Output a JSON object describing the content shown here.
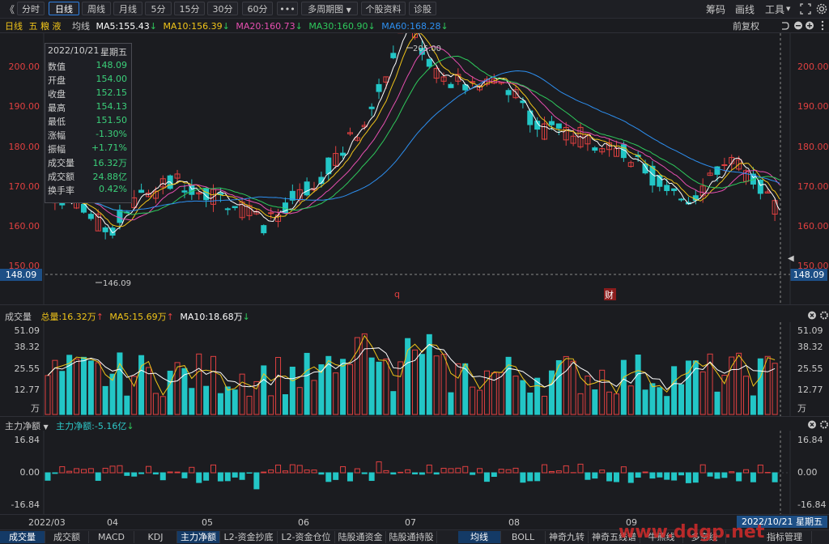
{
  "toolbar": {
    "back": "《",
    "periods": [
      "分时",
      "日线",
      "周线",
      "月线",
      "5分",
      "15分",
      "30分",
      "60分"
    ],
    "active_period": "日线",
    "more": "•••",
    "multi_period": "多周期图",
    "stock_info": "个股资料",
    "diagnose": "诊股",
    "right_items": [
      "筹码",
      "画线",
      "工具"
    ],
    "tools_arrow": "▼"
  },
  "main_legend": {
    "period": "日线",
    "stock_name": "五 粮 液",
    "ma_label": "均线",
    "ma5": "MA5:155.43",
    "ma10": "MA10:156.39",
    "ma20": "MA20:160.73",
    "ma30": "MA30:160.90",
    "ma60": "MA60:168.28",
    "adjust": "前复权",
    "colors": {
      "ma5": "#ffffff",
      "ma10": "#f0c419",
      "ma20": "#e64fb0",
      "ma30": "#2ec95c",
      "ma60": "#2d8ff0"
    }
  },
  "price_axis": {
    "labels": [
      "200.00",
      "190.00",
      "180.00",
      "170.00",
      "160.00",
      "150.00"
    ],
    "current_price": "148.09",
    "high_mark": "205.00",
    "low_mark": "146.09"
  },
  "infobox": {
    "date": "2022/10/21",
    "weekday": "星期五",
    "rows": [
      {
        "k": "数值",
        "v": "148.09"
      },
      {
        "k": "开盘",
        "v": "154.00"
      },
      {
        "k": "收盘",
        "v": "152.15"
      },
      {
        "k": "最高",
        "v": "154.13"
      },
      {
        "k": "最低",
        "v": "151.50"
      },
      {
        "k": "涨幅",
        "v": "-1.30%"
      },
      {
        "k": "振幅",
        "v": "+1.71%"
      },
      {
        "k": "成交量",
        "v": "16.32万"
      },
      {
        "k": "成交额",
        "v": "24.88亿"
      },
      {
        "k": "换手率",
        "v": "0.42%"
      }
    ]
  },
  "markers": {
    "q": "q",
    "cai": "财"
  },
  "volume_panel": {
    "title": "成交量",
    "total": "总量:16.32万",
    "ma5": "MA5:15.69万",
    "ma10": "MA10:18.68万",
    "labels": [
      "51.09",
      "38.32",
      "25.55",
      "12.77",
      "万"
    ]
  },
  "netflow_panel": {
    "title": "主力净额",
    "value": "主力净额:-5.16亿",
    "labels": [
      "16.84",
      "0.00",
      "-16.84"
    ]
  },
  "x_axis": {
    "labels": [
      "2022/03",
      "04",
      "05",
      "06",
      "07",
      "08",
      "09"
    ],
    "current_date": "2022/10/21 星期五"
  },
  "bottom_tabs": {
    "left": [
      "成交量",
      "成交额",
      "MACD",
      "KDJ",
      "主力净额",
      "L2-资金抄底",
      "L2-资金仓位",
      "陆股通资金",
      "陆股通持股"
    ],
    "active_left": "主力净额",
    "right": [
      "均线",
      "BOLL",
      "神奇九转",
      "神奇五线谱",
      "牛熊线",
      "多空线",
      "指标管理"
    ],
    "active_right": "均线"
  },
  "watermark": "www.ddgp.net"
}
